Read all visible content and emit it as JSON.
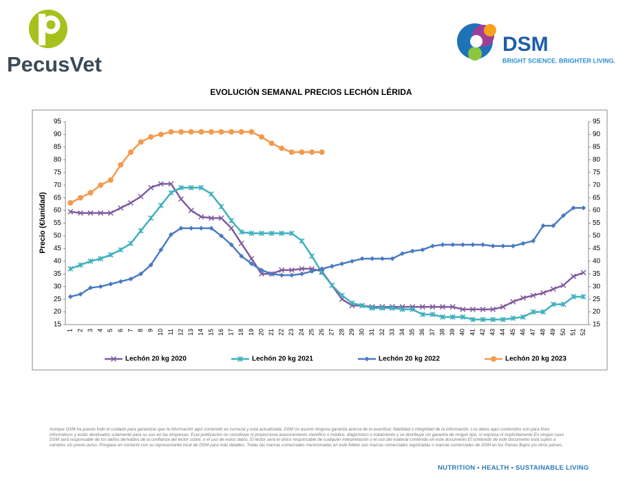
{
  "header": {
    "left_logo": "PecusVet",
    "right_logo": "DSM",
    "tagline": "BRIGHT SCIENCE. BRIGHTER LIVING."
  },
  "chart_data": {
    "type": "line",
    "title": "EVOLUCIÓN SEMANAL PRECIOS LECHÓN LÉRIDA",
    "y_label": "Precio (€/unidad)",
    "categories": [
      "1",
      "2",
      "3",
      "4",
      "5",
      "6",
      "7",
      "8",
      "9",
      "10",
      "11",
      "12",
      "13",
      "14",
      "15",
      "16",
      "17",
      "18",
      "19",
      "20",
      "21",
      "22",
      "23",
      "24",
      "25",
      "26",
      "27",
      "28",
      "29",
      "30",
      "31",
      "32",
      "33",
      "34",
      "35",
      "36",
      "37",
      "38",
      "39",
      "40",
      "41",
      "42",
      "43",
      "44",
      "45",
      "46",
      "47",
      "48",
      "49",
      "50",
      "51",
      "52"
    ],
    "series": [
      {
        "name": "Lechón 20 kg 2020",
        "color": "#7f5a9e",
        "marker": "x",
        "values": [
          59.5,
          59,
          59,
          59,
          59,
          61,
          63,
          65.5,
          69,
          70.5,
          70.5,
          64.5,
          60,
          57.5,
          57,
          57,
          53,
          47,
          41,
          35,
          35,
          36.5,
          36.5,
          37,
          37,
          36,
          30.5,
          25,
          22.5,
          22.5,
          22,
          22,
          22,
          22,
          22,
          22,
          22,
          22,
          22,
          21,
          21,
          21,
          21,
          22,
          24,
          25.5,
          26.5,
          27.5,
          29,
          30.5,
          34,
          35.5
        ]
      },
      {
        "name": "Lechón 20 kg 2021",
        "color": "#3fb1bd",
        "marker": "star",
        "values": [
          37,
          38.5,
          40,
          41,
          42.5,
          44.5,
          47,
          52,
          57,
          62,
          67,
          69,
          69,
          69,
          66.5,
          61.5,
          56,
          51.5,
          51,
          51,
          51,
          51,
          51,
          48,
          42,
          35.5,
          30.5,
          26.5,
          23.5,
          22.5,
          21.5,
          21.5,
          21.5,
          21,
          21,
          19,
          19,
          18,
          18,
          18,
          17,
          17,
          17,
          17,
          17.5,
          18,
          20,
          20,
          23,
          23,
          26,
          26
        ]
      },
      {
        "name": "Lechón 20 kg 2022",
        "color": "#4a7bc0",
        "marker": "diamond",
        "values": [
          26,
          27,
          29.5,
          30,
          31,
          32,
          33,
          35,
          38.5,
          44.5,
          50.5,
          53,
          53,
          53,
          53,
          50,
          46.5,
          42,
          39,
          36.5,
          35,
          34.5,
          34.5,
          35,
          36,
          37,
          38,
          39,
          40,
          41,
          41,
          41,
          41,
          43,
          44,
          44.5,
          46,
          46.5,
          46.5,
          46.5,
          46.5,
          46.5,
          46,
          46,
          46,
          47,
          48,
          54,
          54,
          58,
          61,
          61
        ]
      },
      {
        "name": "Lechón 20 kg 2023",
        "color": "#f39a4c",
        "marker": "circle",
        "values": [
          63,
          65,
          67,
          70,
          72,
          78,
          83,
          87,
          89,
          90,
          91,
          91,
          91,
          91,
          91,
          91,
          91,
          91,
          91,
          89,
          86.5,
          84.5,
          83,
          83,
          83,
          83,
          null,
          null,
          null,
          null,
          null,
          null,
          null,
          null,
          null,
          null,
          null,
          null,
          null,
          null,
          null,
          null,
          null,
          null,
          null,
          null,
          null,
          null,
          null,
          null,
          null,
          null
        ]
      }
    ],
    "ylim": [
      15,
      95
    ],
    "yticks": [
      15,
      20,
      25,
      30,
      35,
      40,
      45,
      50,
      55,
      60,
      65,
      70,
      75,
      80,
      85,
      90,
      95
    ],
    "y2lim": [
      15,
      95
    ],
    "y2ticks": [
      15,
      20,
      25,
      30,
      35,
      40,
      45,
      50,
      55,
      60,
      65,
      70,
      75,
      80,
      85,
      90,
      95
    ],
    "grid": false,
    "legend": "bottom"
  },
  "disclaimer": "Aunque DSM ha puesto todo el cuidado para garantizar que la información aquí contenido es correcta y está actualizada, DSM no asume ninguna garantía acerca de la exactitud, fiabilidad o integridad de la información. Los datos aquí contenidos son para fines informativos y están destinados solamente para su uso en las empresas. Esta publicación no constituye ni proporciona asesoramiento científico o médico, diagnóstico o tratamiento y se distribuye sin garantía de ningún tipo, ni expresa ni implícitamente En ningún caso DSM será responsable de los daños derivados de la confianza del lector sobre, o el uso de estos datos. El lector será el único responsable de cualquier interpretación o el uso del material contenido en este documento El contenido de este documento está sujeto a cambios sin previo aviso. Póngase en contacto con su representante local de DSM para más detalles. Todas las marcas comerciales mencionadas en este folleto son marcas comerciales registradas o marcas comerciales de DSM en los Países Bajos y/u otros países.",
  "footer": "NUTRITION • HEALTH • SUSTAINABLE LIVING"
}
